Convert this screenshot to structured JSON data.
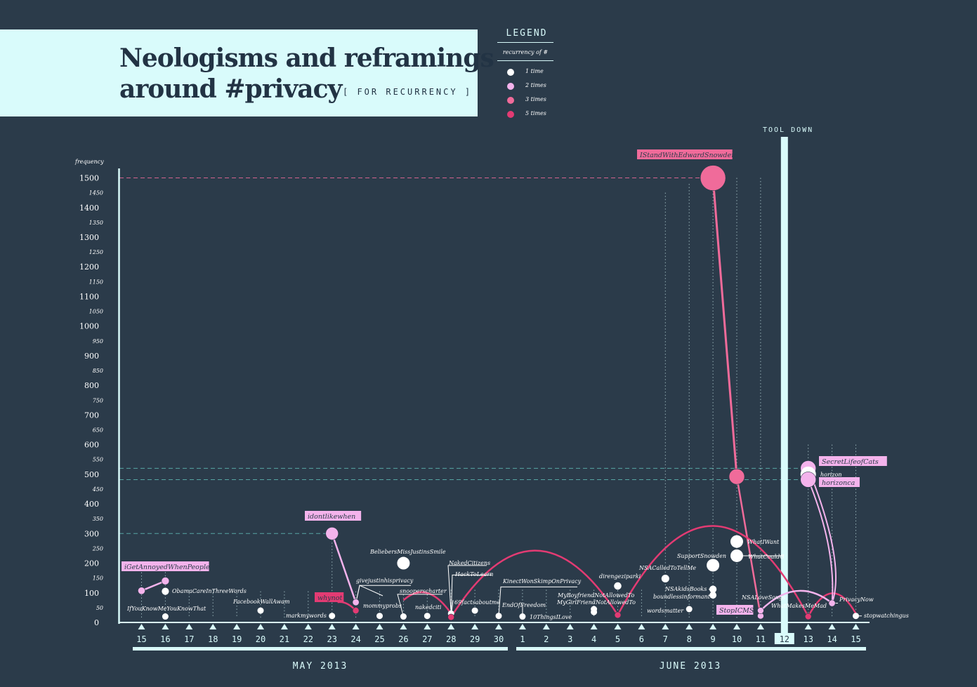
{
  "title": {
    "line1": "Neologisms  and reframings",
    "line2": "around #privacy",
    "subtitle": "[ FOR RECURRENCY ]"
  },
  "legend": {
    "title": "LEGEND",
    "subtitle": "recurrency of #",
    "items": [
      {
        "label": "1 time",
        "color": "#ffffff"
      },
      {
        "label": "2 times",
        "color": "#f4b3ec"
      },
      {
        "label": "3 times",
        "color": "#f06b9a"
      },
      {
        "label": "5 times",
        "color": "#e33b73"
      }
    ]
  },
  "annotation": {
    "tool_down": "TOOL DOWN"
  },
  "chart_data": {
    "type": "scatter",
    "ylabel": "frequency",
    "ylim": [
      0,
      1500
    ],
    "yticks_major": [
      "1500",
      "1400",
      "1300",
      "1200",
      "1100",
      "1000",
      "900",
      "800",
      "700",
      "600",
      "500",
      "400",
      "300",
      "200",
      "100",
      "0"
    ],
    "yticks_minor": [
      "1450",
      "1350",
      "1250",
      "1150",
      "1050",
      "950",
      "850",
      "750",
      "650",
      "550",
      "450",
      "350",
      "250",
      "150",
      "50"
    ],
    "x_ticks": [
      "15",
      "16",
      "17",
      "18",
      "19",
      "20",
      "21",
      "22",
      "23",
      "24",
      "25",
      "26",
      "27",
      "28",
      "29",
      "30",
      "1",
      "2",
      "3",
      "4",
      "5",
      "6",
      "7",
      "8",
      "9",
      "10",
      "11",
      "12",
      "13",
      "14",
      "15"
    ],
    "months": [
      "MAY 2013",
      "JUNE 2013"
    ],
    "points": [
      {
        "label": "iGetAnnoyedWhenPeople",
        "day": "May 15",
        "value": 107,
        "recurrency": 2
      },
      {
        "label": "IfYouKnowMeYouKnowThat",
        "day": "May 16",
        "value": 20,
        "recurrency": 1
      },
      {
        "label": "ObamaCareInThreeWords",
        "day": "May 16",
        "value": 105,
        "recurrency": 1
      },
      {
        "label": "",
        "day": "May 16",
        "value": 140,
        "recurrency": 2
      },
      {
        "label": "FacebookWallAwam",
        "day": "May 20",
        "value": 40,
        "recurrency": 1
      },
      {
        "label": "markmywords",
        "day": "May 23",
        "value": 22,
        "recurrency": 1
      },
      {
        "label": "idontlikewhen",
        "day": "May 23",
        "value": 300,
        "recurrency": 2
      },
      {
        "label": "whynot",
        "day": "May 24",
        "value": 40,
        "recurrency": 5
      },
      {
        "label": "mommyprobs",
        "day": "May 24",
        "value": 68,
        "recurrency": 2
      },
      {
        "label": "givejustinhisprivacy",
        "day": "May 25",
        "value": 22,
        "recurrency": 1
      },
      {
        "label": "BeliebersMissJustinsSmile",
        "day": "May 26",
        "value": 200,
        "recurrency": 1
      },
      {
        "label": "snooperscharter",
        "day": "May 26",
        "value": 20,
        "recurrency": 1
      },
      {
        "label": "nakedciti",
        "day": "May 27",
        "value": 22,
        "recurrency": 1
      },
      {
        "label": "NakedCitizens",
        "day": "May 28",
        "value": 30,
        "recurrency": 1
      },
      {
        "label": "HackToLearn",
        "day": "May 28",
        "value": 18,
        "recurrency": 5
      },
      {
        "label": "69factsaboutme",
        "day": "May 29",
        "value": 40,
        "recurrency": 1
      },
      {
        "label": "EndOfFreedom",
        "day": "May 30",
        "value": 22,
        "recurrency": 1
      },
      {
        "label": "10ThingsILove",
        "day": "Jun 1",
        "value": 20,
        "recurrency": 1
      },
      {
        "label": "KinectWonSkimpOnPrivacy",
        "day": "Jun 4",
        "value": 35,
        "recurrency": 1
      },
      {
        "label": "MyBoyfriendNotAllowedTo",
        "day": "Jun 4",
        "value": 45,
        "recurrency": 1
      },
      {
        "label": "MyGirlFriendNotAllowedTo",
        "day": "Jun 5",
        "value": 25,
        "recurrency": 5
      },
      {
        "label": "direngeziparki",
        "day": "Jun 5",
        "value": 123,
        "recurrency": 1
      },
      {
        "label": "NSACalledToTellMe",
        "day": "Jun 7",
        "value": 148,
        "recurrency": 1
      },
      {
        "label": "wordsmatter",
        "day": "Jun 8",
        "value": 45,
        "recurrency": 1
      },
      {
        "label": "SupportSnowden",
        "day": "Jun 9",
        "value": 193,
        "recurrency": 1
      },
      {
        "label": "NSAkidsBooks",
        "day": "Jun 9",
        "value": 112,
        "recurrency": 1
      },
      {
        "label": "boundlessinformant",
        "day": "Jun 9",
        "value": 92,
        "recurrency": 1
      },
      {
        "label": "IStandWithEdwardSnowden",
        "day": "Jun 9",
        "value": 1500,
        "recurrency": 3
      },
      {
        "label": "",
        "day": "Jun 10",
        "value": 492,
        "recurrency": 3
      },
      {
        "label": "WhatIWant",
        "day": "Jun 10",
        "value": 273,
        "recurrency": 1
      },
      {
        "label": "WhatCouldG",
        "day": "Jun 10",
        "value": 225,
        "recurrency": 1
      },
      {
        "label": "StopICMS",
        "day": "Jun 11",
        "value": 22,
        "recurrency": 2
      },
      {
        "label": "NSALoveSongs",
        "day": "Jun 11",
        "value": 40,
        "recurrency": 2
      },
      {
        "label": "WhatMakesMeMad",
        "day": "Jun 13",
        "value": 20,
        "recurrency": 5
      },
      {
        "label": "SecretLifeofCats",
        "day": "Jun 13",
        "value": 520,
        "recurrency": 2
      },
      {
        "label": "horizon",
        "day": "Jun 13",
        "value": 500,
        "recurrency": 1
      },
      {
        "label": "horizonca",
        "day": "Jun 13",
        "value": 482,
        "recurrency": 2
      },
      {
        "label": "PrivacyNow",
        "day": "Jun 14",
        "value": 65,
        "recurrency": 2
      },
      {
        "label": "stopwatchingus",
        "day": "Jun 15",
        "value": 22,
        "recurrency": 1
      }
    ],
    "reference_lines": [
      1500,
      520,
      482,
      300
    ],
    "grid": "dotted vertical lines from each labelled point to the x-axis"
  }
}
